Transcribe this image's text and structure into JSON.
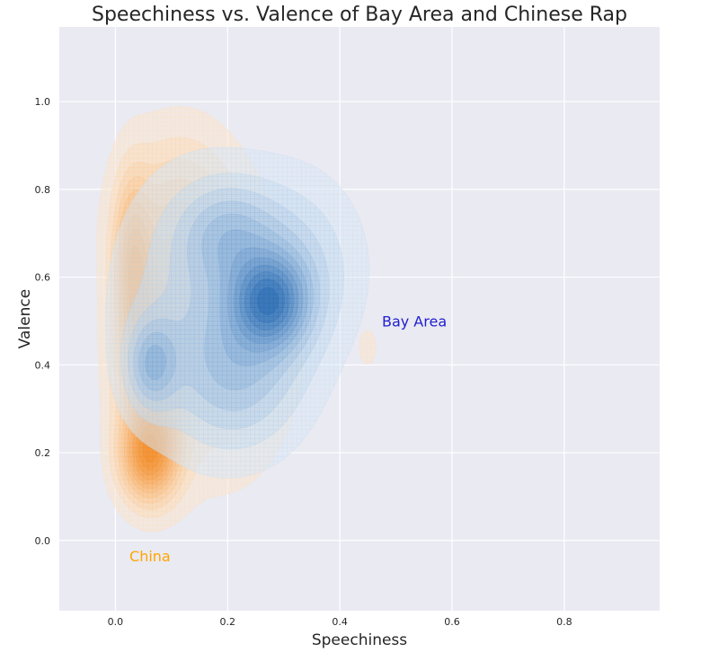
{
  "chart_data": {
    "type": "kde_contour",
    "title": "Speechiness vs. Valence of Bay Area and Chinese Rap",
    "xlabel": "Speechiness",
    "ylabel": "Valence",
    "xlim": [
      -0.1,
      0.97
    ],
    "ylim": [
      -0.16,
      1.17
    ],
    "x_ticks": [
      "0.0",
      "0.2",
      "0.4",
      "0.6",
      "0.8"
    ],
    "y_ticks": [
      "0.0",
      "0.2",
      "0.4",
      "0.6",
      "0.8",
      "1.0"
    ],
    "grid": true,
    "background": "#eaeaf2",
    "series": [
      {
        "name": "China",
        "color": "#f28e2b",
        "components": [
          {
            "x": 0.03,
            "y": 0.63,
            "sx": 0.022,
            "sy": 0.13,
            "w": 0.6
          },
          {
            "x": 0.06,
            "y": 0.19,
            "sx": 0.035,
            "sy": 0.07,
            "w": 1.0
          },
          {
            "x": 0.065,
            "y": 0.4,
            "sx": 0.04,
            "sy": 0.13,
            "w": 0.8
          },
          {
            "x": 0.11,
            "y": 0.72,
            "sx": 0.07,
            "sy": 0.14,
            "w": 0.45
          },
          {
            "x": 0.18,
            "y": 0.45,
            "sx": 0.09,
            "sy": 0.2,
            "w": 0.35
          },
          {
            "x": 0.45,
            "y": 0.44,
            "sx": 0.015,
            "sy": 0.04,
            "w": 0.12
          }
        ]
      },
      {
        "name": "Bay Area",
        "color": "#2b6db4",
        "components": [
          {
            "x": 0.275,
            "y": 0.545,
            "sx": 0.045,
            "sy": 0.07,
            "w": 1.0
          },
          {
            "x": 0.065,
            "y": 0.4,
            "sx": 0.03,
            "sy": 0.07,
            "w": 0.55
          },
          {
            "x": 0.2,
            "y": 0.7,
            "sx": 0.06,
            "sy": 0.08,
            "w": 0.4
          },
          {
            "x": 0.22,
            "y": 0.38,
            "sx": 0.08,
            "sy": 0.12,
            "w": 0.45
          },
          {
            "x": 0.32,
            "y": 0.62,
            "sx": 0.08,
            "sy": 0.14,
            "w": 0.35
          },
          {
            "x": 0.14,
            "y": 0.55,
            "sx": 0.1,
            "sy": 0.2,
            "w": 0.3
          }
        ]
      }
    ],
    "annotations": [
      {
        "text": "Bay Area",
        "x": 0.475,
        "y": 0.5,
        "color": "#2020d0"
      },
      {
        "text": "China",
        "x": 0.025,
        "y": -0.035,
        "color": "#ffa500"
      }
    ]
  }
}
